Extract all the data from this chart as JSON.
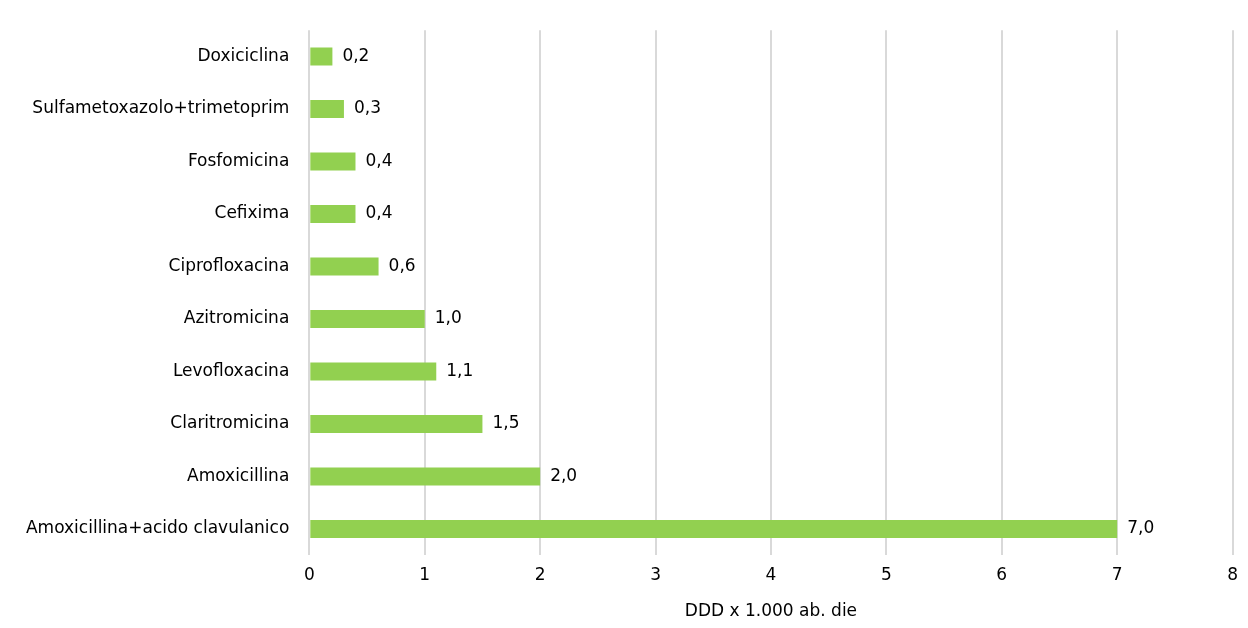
{
  "chart_data": {
    "type": "bar",
    "orientation": "horizontal",
    "xlabel": "DDD x 1.000 ab. die",
    "categories": [
      "Doxiciclina",
      "Sulfametoxazolo+trimetoprim",
      "Fosfomicina",
      "Cefixima",
      "Ciprofloxacina",
      "Azitromicina",
      "Levofloxacina",
      "Claritromicina",
      "Amoxicillina",
      "Amoxicillina+acido clavulanico"
    ],
    "values": [
      0.2,
      0.3,
      0.4,
      0.4,
      0.6,
      1.0,
      1.1,
      1.5,
      2.0,
      7.0
    ],
    "value_labels": [
      "0,2",
      "0,3",
      "0,4",
      "0,4",
      "0,6",
      "1,0",
      "1,1",
      "1,5",
      "2,0",
      "7,0"
    ],
    "color": "#92d050",
    "xlim": [
      0,
      8
    ],
    "xticks": [
      0,
      1,
      2,
      3,
      4,
      5,
      6,
      7,
      8
    ],
    "grid": "x",
    "legend": false
  }
}
